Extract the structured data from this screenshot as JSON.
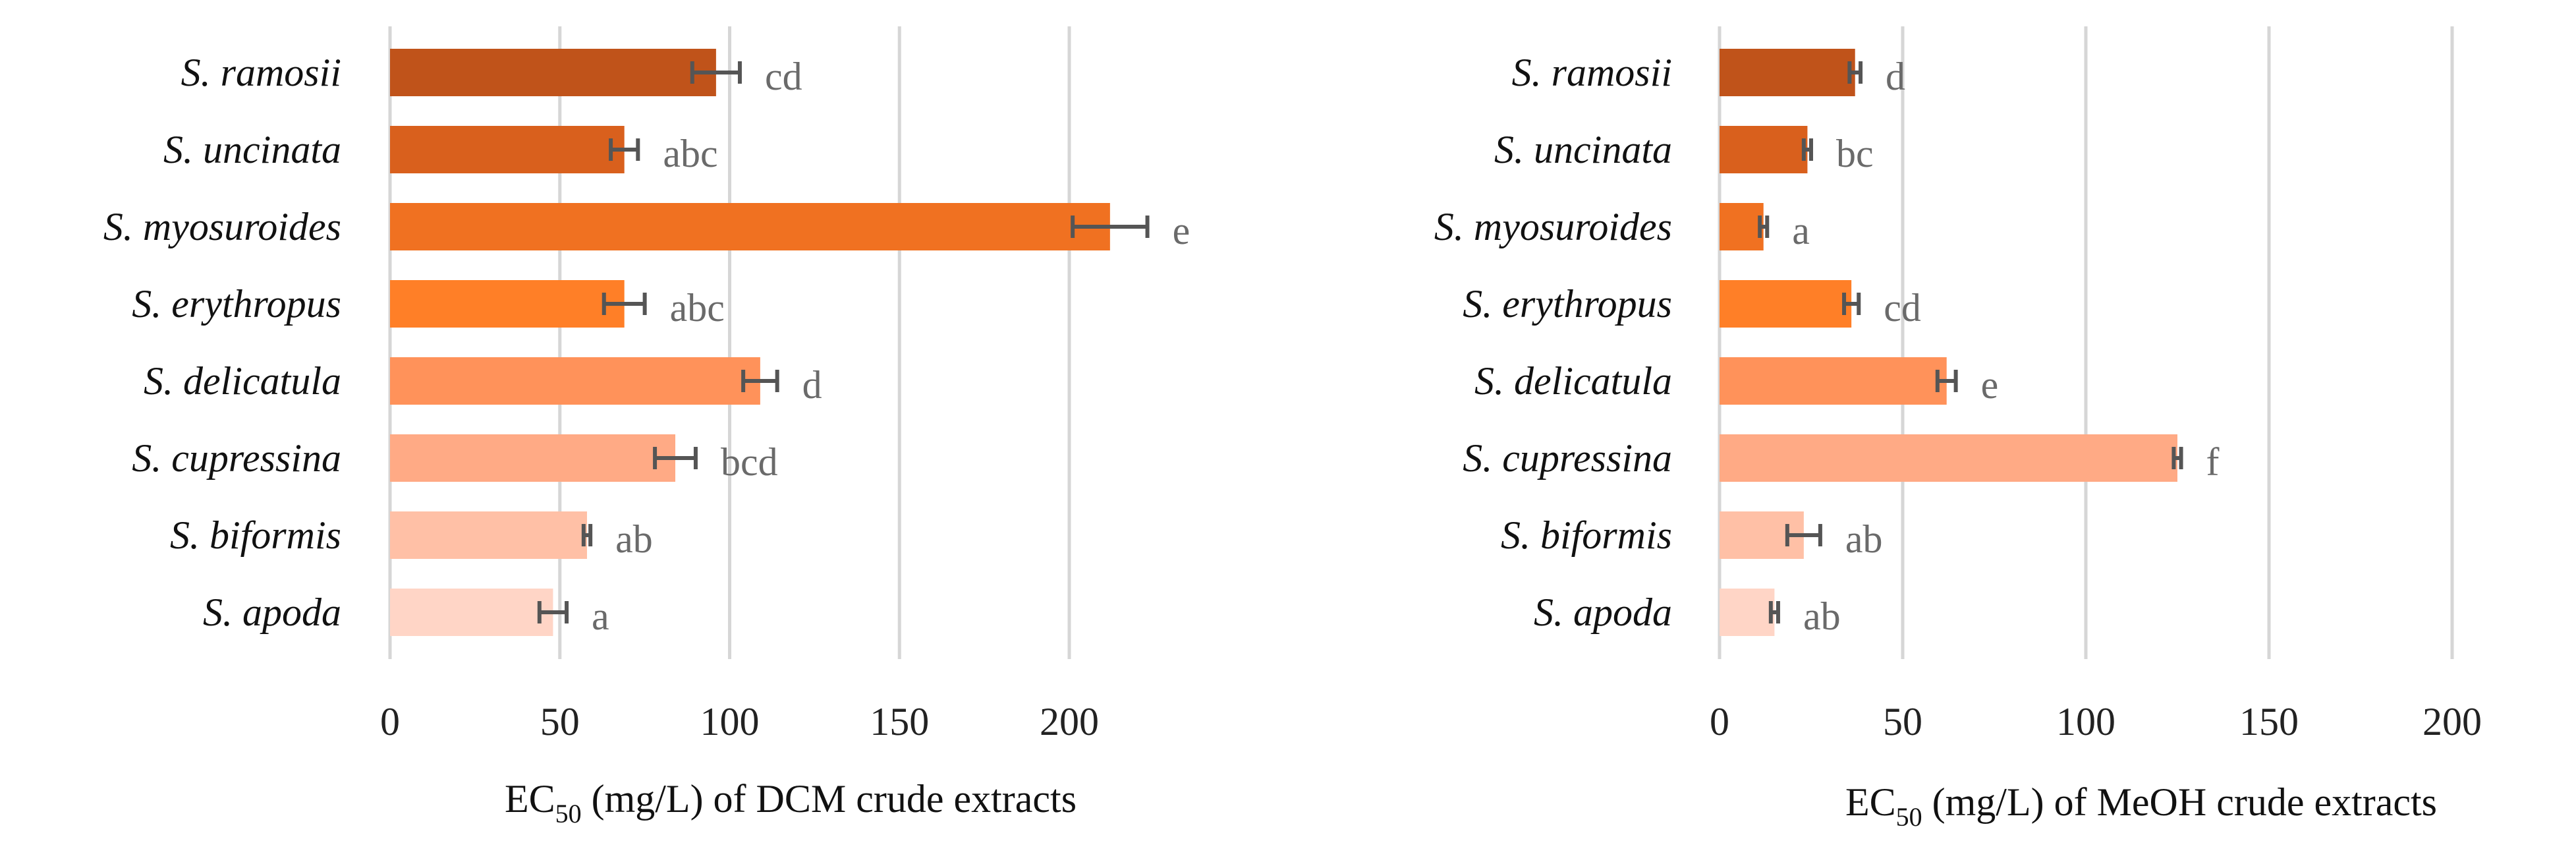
{
  "chart_data": [
    {
      "type": "bar",
      "orientation": "horizontal",
      "xlim": [
        0,
        225
      ],
      "ticks": [
        0,
        50,
        100,
        150,
        200
      ],
      "grid": "vertical",
      "xlabel": {
        "prefix": "EC",
        "subscript": "50",
        "suffix": " (mg/L) of DCM crude extracts"
      },
      "categories": [
        "S. ramosii",
        "S. uncinata",
        "S. myosuroides",
        "S. erythropus",
        "S. delicatula",
        "S. cupressina",
        "S. biformis",
        "S. apoda"
      ],
      "values": [
        96,
        69,
        212,
        69,
        109,
        84,
        58,
        48
      ],
      "errors": [
        7,
        4,
        11,
        6,
        5,
        6,
        1,
        4
      ],
      "significance": [
        "cd",
        "abc",
        "e",
        "abc",
        "d",
        "bcd",
        "ab",
        "a"
      ],
      "colors": [
        "#C0531A",
        "#D9601D",
        "#F07121",
        "#FF7F27",
        "#FF925A",
        "#FFAA85",
        "#FFC0A6",
        "#FFD5C6"
      ]
    },
    {
      "type": "bar",
      "orientation": "horizontal",
      "xlim": [
        0,
        215
      ],
      "ticks": [
        0,
        50,
        100,
        150,
        200
      ],
      "grid": "vertical",
      "xlabel": {
        "prefix": "EC",
        "subscript": "50",
        "suffix": " (mg/L) of MeOH crude extracts"
      },
      "categories": [
        "S. ramosii",
        "S. uncinata",
        "S. myosuroides",
        "S. erythropus",
        "S. delicatula",
        "S. cupressina",
        "S. biformis",
        "S. apoda"
      ],
      "values": [
        37,
        24,
        12,
        36,
        62,
        125,
        23,
        15
      ],
      "errors": [
        1.5,
        1,
        1,
        2,
        2.5,
        1,
        4.5,
        1
      ],
      "significance": [
        "d",
        "bc",
        "a",
        "cd",
        "e",
        "f",
        "ab",
        "ab"
      ],
      "colors": [
        "#C0531A",
        "#D9601D",
        "#F07121",
        "#FF7F27",
        "#FF925A",
        "#FFAA85",
        "#FFC0A6",
        "#FFD5C6"
      ]
    }
  ]
}
